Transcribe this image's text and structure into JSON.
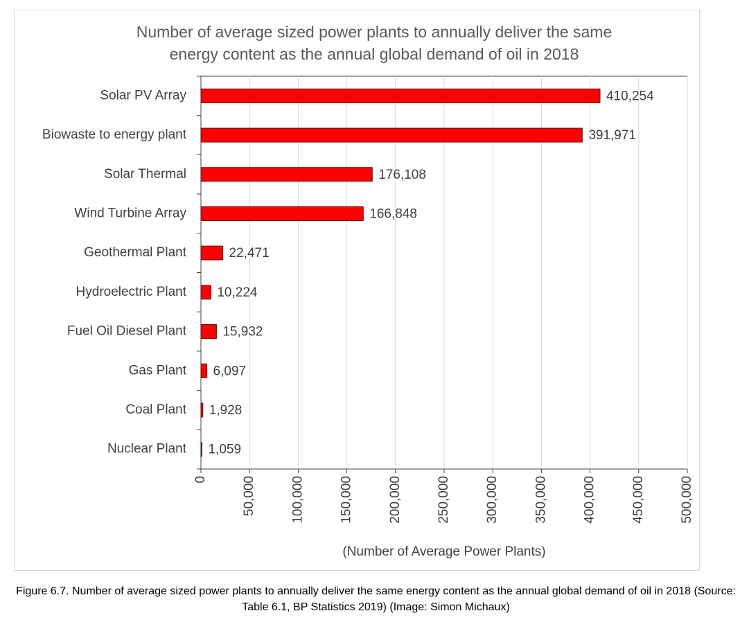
{
  "chart_data": {
    "type": "bar",
    "orientation": "horizontal",
    "title": "Number of average sized power plants to annually deliver the same energy content as the annual global demand of oil in 2018",
    "categories": [
      "Solar PV Array",
      "Biowaste to energy plant",
      "Solar Thermal",
      "Wind Turbine Array",
      "Geothermal Plant",
      "Hydroelectric Plant",
      "Fuel Oil Diesel Plant",
      "Gas Plant",
      "Coal Plant",
      "Nuclear Plant"
    ],
    "values": [
      410254,
      391971,
      176108,
      166848,
      22471,
      10224,
      15932,
      6097,
      1928,
      1059
    ],
    "value_labels": [
      "410,254",
      "391,971",
      "176,108",
      "166,848",
      "22,471",
      "10,224",
      "15,932",
      "6,097",
      "1,928",
      "1,059"
    ],
    "color": "#ff0000",
    "xlabel": "(Number of Average Power Plants)",
    "xlim": [
      0,
      500000
    ],
    "xticks": [
      0,
      {
        "value": 50000,
        "label": "50,000"
      },
      {
        "value": 100000,
        "label": "100,000"
      },
      {
        "value": 150000,
        "label": "150,000"
      },
      {
        "value": 200000,
        "label": "200,000"
      },
      {
        "value": 250000,
        "label": "250,000"
      },
      {
        "value": 300000,
        "label": "300,000"
      },
      {
        "value": 350000,
        "label": "350,000"
      },
      {
        "value": 400000,
        "label": "400,000"
      },
      {
        "value": 450000,
        "label": "450,000"
      },
      {
        "value": 500000,
        "label": "500,000"
      }
    ],
    "grid": true
  },
  "caption": "Figure 6.7. Number of average sized power plants to annually deliver the same energy content as the annual global demand of oil in 2018 (Source: Table 6.1, BP Statistics 2019) (Image: Simon Michaux)"
}
